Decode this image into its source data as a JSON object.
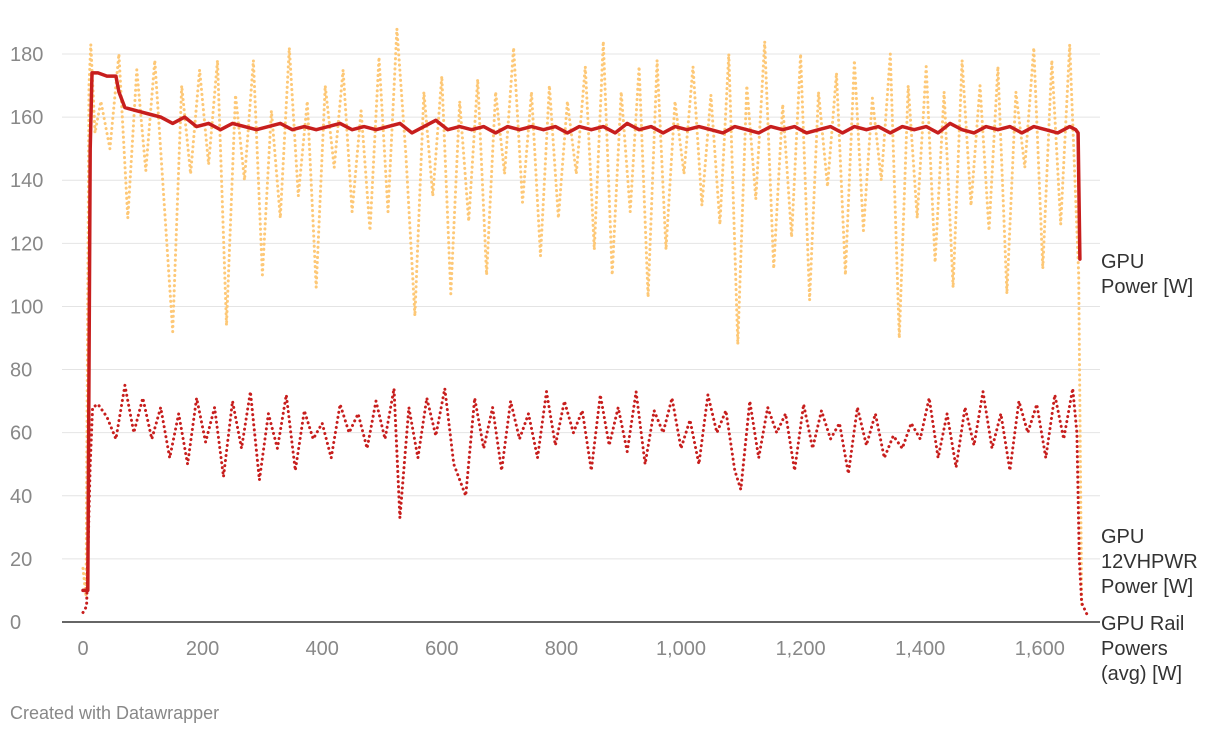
{
  "chart_data": {
    "type": "line",
    "title": "",
    "xlabel": "",
    "ylabel": "",
    "xlim": [
      0,
      1680
    ],
    "ylim": [
      0,
      190
    ],
    "x_ticks": [
      0,
      200,
      400,
      600,
      800,
      1000,
      1200,
      1400,
      1600
    ],
    "x_tick_labels": [
      "0",
      "200",
      "400",
      "600",
      "800",
      "1,000",
      "1,200",
      "1,400",
      "1,600"
    ],
    "y_ticks": [
      0,
      20,
      40,
      60,
      80,
      100,
      120,
      140,
      160,
      180
    ],
    "y_tick_labels": [
      "0",
      "20",
      "40",
      "60",
      "80",
      "100",
      "120",
      "140",
      "160",
      "180"
    ],
    "grid": true,
    "legend": "direct labels at right end of each series",
    "series": [
      {
        "name": "GPU 12VHPWR Power [W]",
        "label_lines": [
          "GPU",
          "12VHPWR",
          "Power [W]"
        ],
        "color": "#fdc877",
        "style": "dotted",
        "x": [
          0,
          5,
          10,
          13,
          20,
          30,
          45,
          60,
          75,
          90,
          105,
          120,
          135,
          150,
          165,
          180,
          195,
          210,
          225,
          240,
          255,
          270,
          285,
          300,
          315,
          330,
          345,
          360,
          375,
          390,
          405,
          420,
          435,
          450,
          465,
          480,
          495,
          510,
          525,
          540,
          555,
          570,
          585,
          600,
          615,
          630,
          645,
          660,
          675,
          690,
          705,
          720,
          735,
          750,
          765,
          780,
          795,
          810,
          825,
          840,
          855,
          870,
          885,
          900,
          915,
          930,
          945,
          960,
          975,
          990,
          1005,
          1020,
          1035,
          1050,
          1065,
          1080,
          1095,
          1110,
          1125,
          1140,
          1155,
          1170,
          1185,
          1200,
          1215,
          1230,
          1245,
          1260,
          1275,
          1290,
          1305,
          1320,
          1335,
          1350,
          1365,
          1380,
          1395,
          1410,
          1425,
          1440,
          1455,
          1470,
          1485,
          1500,
          1515,
          1530,
          1545,
          1560,
          1575,
          1590,
          1605,
          1620,
          1635,
          1650,
          1660,
          1665,
          1670
        ],
        "y": [
          17,
          8,
          170,
          183,
          155,
          165,
          150,
          180,
          128,
          175,
          143,
          178,
          135,
          92,
          170,
          142,
          175,
          145,
          178,
          94,
          167,
          140,
          178,
          110,
          162,
          128,
          182,
          135,
          165,
          106,
          170,
          144,
          175,
          130,
          162,
          124,
          179,
          130,
          188,
          148,
          97,
          168,
          135,
          173,
          104,
          165,
          127,
          172,
          110,
          168,
          142,
          182,
          133,
          168,
          116,
          170,
          128,
          165,
          142,
          176,
          118,
          184,
          110,
          168,
          130,
          176,
          103,
          178,
          118,
          165,
          142,
          176,
          132,
          167,
          126,
          180,
          88,
          170,
          134,
          184,
          112,
          164,
          122,
          180,
          102,
          168,
          138,
          174,
          110,
          178,
          124,
          166,
          140,
          180,
          90,
          170,
          128,
          176,
          114,
          168,
          106,
          178,
          132,
          170,
          124,
          176,
          104,
          168,
          144,
          182,
          112,
          178,
          126,
          183,
          134,
          110,
          5
        ]
      },
      {
        "name": "GPU Power [W]",
        "label_lines": [
          "GPU",
          "Power [W]"
        ],
        "color": "#c71e1d",
        "style": "solid",
        "x": [
          0,
          8,
          12,
          15,
          25,
          40,
          55,
          60,
          70,
          90,
          110,
          130,
          150,
          170,
          190,
          210,
          230,
          250,
          270,
          290,
          310,
          330,
          350,
          370,
          390,
          410,
          430,
          450,
          470,
          490,
          510,
          530,
          550,
          570,
          590,
          610,
          630,
          650,
          670,
          690,
          710,
          730,
          750,
          770,
          790,
          810,
          830,
          850,
          870,
          890,
          910,
          930,
          950,
          970,
          990,
          1010,
          1030,
          1050,
          1070,
          1090,
          1110,
          1130,
          1150,
          1170,
          1190,
          1210,
          1230,
          1250,
          1270,
          1290,
          1310,
          1330,
          1350,
          1370,
          1390,
          1410,
          1430,
          1450,
          1470,
          1490,
          1510,
          1530,
          1550,
          1570,
          1590,
          1610,
          1630,
          1650,
          1660,
          1664,
          1667
        ],
        "y": [
          10,
          10,
          150,
          174,
          174,
          173,
          173,
          168,
          163,
          162,
          161,
          160,
          158,
          160,
          157,
          158,
          156,
          158,
          157,
          156,
          157,
          158,
          156,
          157,
          156,
          157,
          158,
          156,
          157,
          156,
          157,
          158,
          155,
          157,
          159,
          156,
          157,
          156,
          157,
          155,
          157,
          156,
          157,
          156,
          157,
          155,
          157,
          156,
          157,
          155,
          158,
          156,
          157,
          155,
          157,
          156,
          157,
          156,
          155,
          157,
          156,
          155,
          157,
          156,
          157,
          155,
          156,
          157,
          155,
          157,
          156,
          157,
          155,
          157,
          156,
          157,
          155,
          158,
          156,
          155,
          157,
          156,
          157,
          155,
          157,
          156,
          155,
          157,
          156,
          155,
          115
        ]
      },
      {
        "name": "GPU Rail Powers (avg) [W]",
        "label_lines": [
          "GPU Rail",
          "Powers",
          "(avg) [W]"
        ],
        "color": "#c71e1d",
        "style": "dotted",
        "x": [
          0,
          6,
          12,
          16,
          25,
          40,
          55,
          70,
          85,
          100,
          115,
          130,
          145,
          160,
          175,
          190,
          205,
          220,
          235,
          250,
          265,
          280,
          295,
          310,
          325,
          340,
          355,
          370,
          385,
          400,
          415,
          430,
          445,
          460,
          475,
          490,
          505,
          520,
          530,
          545,
          560,
          575,
          590,
          605,
          620,
          640,
          655,
          670,
          685,
          700,
          715,
          730,
          745,
          760,
          775,
          790,
          805,
          820,
          835,
          850,
          865,
          880,
          895,
          910,
          925,
          940,
          955,
          970,
          985,
          1000,
          1015,
          1030,
          1045,
          1060,
          1075,
          1090,
          1100,
          1115,
          1130,
          1145,
          1160,
          1175,
          1190,
          1205,
          1220,
          1235,
          1250,
          1265,
          1280,
          1295,
          1310,
          1325,
          1340,
          1355,
          1370,
          1385,
          1400,
          1415,
          1430,
          1445,
          1460,
          1475,
          1490,
          1505,
          1520,
          1535,
          1550,
          1565,
          1580,
          1595,
          1610,
          1625,
          1640,
          1655,
          1662,
          1666,
          1670,
          1680
        ],
        "y": [
          3,
          5,
          50,
          68,
          69,
          65,
          58,
          75,
          60,
          71,
          58,
          68,
          52,
          66,
          50,
          71,
          57,
          68,
          46,
          70,
          55,
          73,
          45,
          66,
          55,
          72,
          48,
          67,
          58,
          63,
          52,
          69,
          60,
          66,
          55,
          70,
          58,
          74,
          33,
          68,
          52,
          71,
          59,
          74,
          50,
          40,
          71,
          55,
          68,
          48,
          70,
          58,
          66,
          52,
          73,
          56,
          70,
          60,
          67,
          48,
          72,
          56,
          68,
          54,
          73,
          50,
          67,
          60,
          71,
          55,
          64,
          50,
          72,
          60,
          67,
          48,
          42,
          70,
          52,
          68,
          60,
          66,
          48,
          69,
          55,
          67,
          58,
          63,
          47,
          68,
          56,
          66,
          52,
          59,
          55,
          63,
          58,
          71,
          52,
          66,
          49,
          68,
          56,
          73,
          55,
          66,
          48,
          70,
          60,
          69,
          52,
          72,
          58,
          74,
          60,
          20,
          6,
          2
        ]
      }
    ]
  },
  "footer": {
    "credit": "Created with Datawrapper"
  }
}
